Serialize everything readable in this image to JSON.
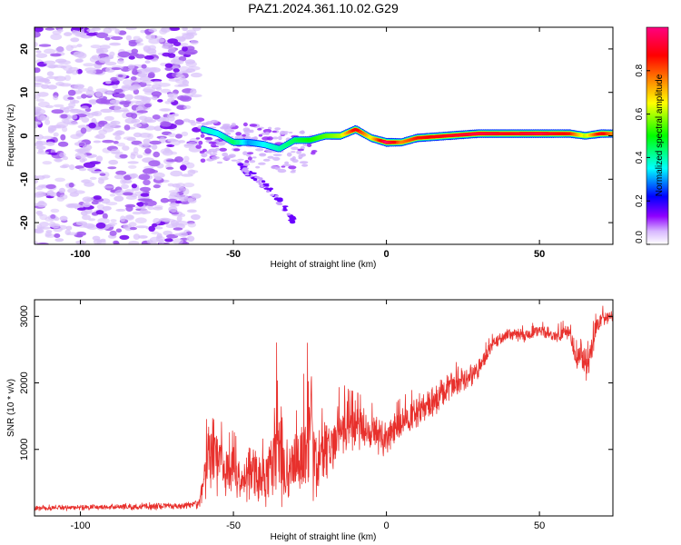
{
  "title": "PAZ1.2024.361.10.02.G29",
  "colors": {
    "snr_line": "#e8302c",
    "spectro_scatter": "#a35cf0",
    "axis": "#000000"
  },
  "chart_data": [
    {
      "type": "heatmap",
      "name": "spectrogram",
      "xlabel": "Height of straight line (km)",
      "ylabel": "Frequency (Hz)",
      "xlim": [
        -115,
        74
      ],
      "ylim": [
        -25,
        25
      ],
      "xticks": [
        -100,
        -50,
        0,
        50
      ],
      "yticks": [
        -20,
        -10,
        0,
        10,
        20
      ],
      "ridge": {
        "x": [
          -60,
          -55,
          -50,
          -45,
          -40,
          -35,
          -30,
          -25,
          -20,
          -15,
          -10,
          -5,
          0,
          5,
          10,
          20,
          30,
          40,
          50,
          60,
          65,
          70,
          74
        ],
        "y": [
          1.5,
          0.5,
          -1.5,
          -1.5,
          -2,
          -3,
          -1,
          -1,
          0,
          0,
          1.5,
          -0.5,
          -1.5,
          -1.5,
          -0.5,
          0,
          0.5,
          0.5,
          0.5,
          0.5,
          0,
          0.5,
          0.5
        ],
        "amplitude": [
          0.4,
          0.35,
          0.45,
          0.3,
          0.35,
          0.4,
          0.45,
          0.5,
          0.55,
          0.6,
          0.9,
          0.65,
          1.0,
          0.75,
          0.85,
          0.9,
          0.95,
          0.9,
          0.95,
          0.85,
          0.6,
          0.9,
          0.75
        ]
      },
      "secondary_branch": {
        "x": [
          -48,
          -42,
          -36,
          -30
        ],
        "y": [
          -7,
          -10,
          -14,
          -20
        ]
      },
      "noise_region": {
        "x_range": [
          -115,
          -62
        ],
        "y_range": [
          -25,
          25
        ]
      },
      "colorbar": {
        "label": "Normalized spectral amplitude",
        "range": [
          0,
          1
        ],
        "ticks": [
          "0.0",
          "0.2",
          "0.4",
          "0.6",
          "0.8"
        ],
        "tick_values": [
          0.0,
          0.2,
          0.4,
          0.6,
          0.8
        ],
        "colormap": [
          "#ffffff",
          "#c8a0ff",
          "#8f00ff",
          "#0000ff",
          "#00ffff",
          "#00ff00",
          "#ffff00",
          "#ff8000",
          "#ff0000",
          "#ff0080"
        ]
      }
    },
    {
      "type": "line",
      "name": "snr",
      "xlabel": "Height of straight line (km)",
      "ylabel": "SNR (10 * v/v)",
      "xlim": [
        -115,
        74
      ],
      "ylim": [
        0,
        3250
      ],
      "xticks": [
        -100,
        -50,
        0,
        50
      ],
      "yticks": [
        1000,
        2000,
        3000
      ],
      "series": [
        {
          "x": [
            -115,
            -100,
            -80,
            -65,
            -61,
            -59,
            -57,
            -55,
            -52,
            -50,
            -47,
            -45,
            -42,
            -40,
            -37,
            -35,
            -33,
            -30,
            -28,
            -25,
            -22,
            -20,
            -18,
            -15,
            -12,
            -10,
            -5,
            0,
            5,
            10,
            15,
            20,
            25,
            30,
            35,
            40,
            45,
            50,
            55,
            60,
            62,
            64,
            66,
            68,
            70,
            74
          ],
          "y": [
            120,
            130,
            140,
            160,
            200,
            700,
            1000,
            800,
            650,
            700,
            500,
            650,
            600,
            550,
            850,
            1100,
            700,
            800,
            900,
            1350,
            700,
            1100,
            1000,
            1300,
            1300,
            1350,
            1250,
            1150,
            1400,
            1550,
            1700,
            1900,
            2050,
            2200,
            2600,
            2750,
            2700,
            2800,
            2700,
            2800,
            2300,
            2500,
            2200,
            2750,
            2950,
            3050
          ],
          "noise_amplitude": [
            50,
            50,
            60,
            60,
            100,
            550,
            600,
            550,
            450,
            450,
            350,
            550,
            500,
            450,
            1050,
            1400,
            450,
            550,
            650,
            1200,
            450,
            650,
            400,
            550,
            450,
            400,
            350,
            300,
            300,
            300,
            300,
            250,
            250,
            200,
            120,
            120,
            120,
            100,
            120,
            150,
            250,
            350,
            300,
            200,
            150,
            120
          ]
        }
      ]
    }
  ]
}
